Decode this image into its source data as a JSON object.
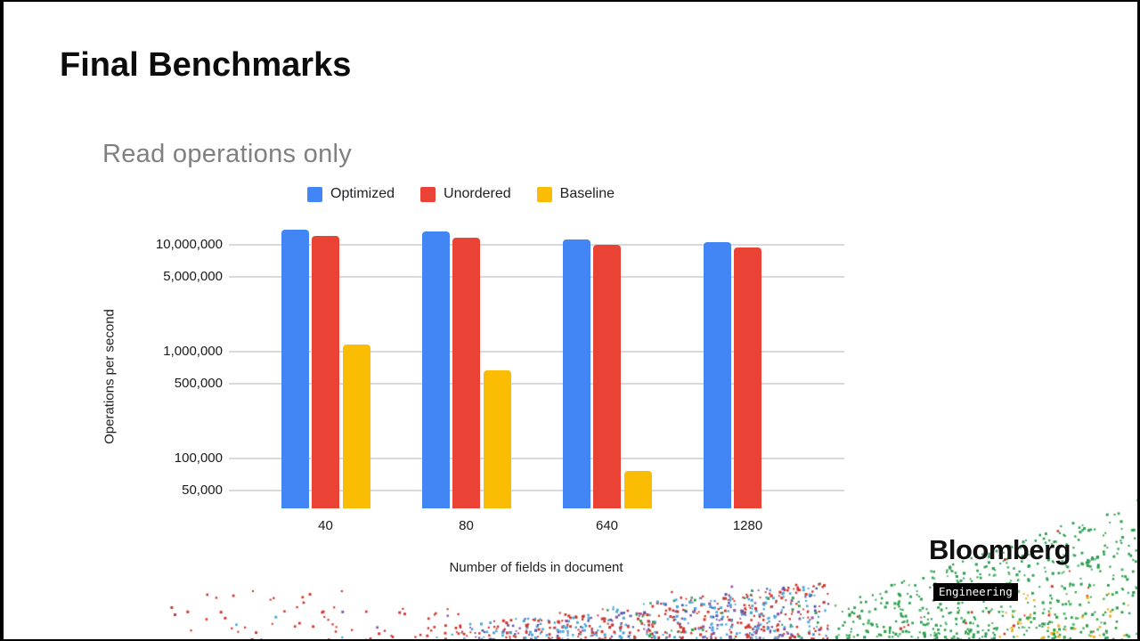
{
  "slide": {
    "title": "Final Benchmarks"
  },
  "chart_data": {
    "type": "bar",
    "title": "Read operations only",
    "xlabel": "Number of fields in document",
    "ylabel": "Operations per second",
    "y_scale": "log",
    "ylim": [
      34000,
      16000000
    ],
    "grid": true,
    "legend_position": "top",
    "categories": [
      "40",
      "80",
      "640",
      "1280"
    ],
    "series": [
      {
        "name": "Optimized",
        "color": "#4285F4",
        "values": [
          13600000,
          13100000,
          11200000,
          10400000
        ]
      },
      {
        "name": "Unordered",
        "color": "#EA4335",
        "values": [
          12000000,
          11500000,
          10000000,
          9400000
        ]
      },
      {
        "name": "Baseline",
        "color": "#FBBC04",
        "values": [
          1150000,
          670000,
          76000,
          null
        ]
      }
    ],
    "y_ticks": [
      {
        "value": 10000000,
        "label": "10,000,000"
      },
      {
        "value": 5000000,
        "label": "5,000,000"
      },
      {
        "value": 1000000,
        "label": "1,000,000"
      },
      {
        "value": 500000,
        "label": "500,000"
      },
      {
        "value": 100000,
        "label": "100,000"
      },
      {
        "value": 50000,
        "label": "50,000"
      }
    ]
  },
  "footer": {
    "brand": "Bloomberg",
    "brand_sub": "Engineering"
  },
  "decor": {
    "confetti_colors": {
      "red": "#d0342c",
      "blue": "#45a5dc",
      "purple": "#8356a5",
      "navy": "#4956b0",
      "green": "#2f9e4f",
      "green_light": "#5cb877",
      "yellow": "#eab11f"
    }
  }
}
